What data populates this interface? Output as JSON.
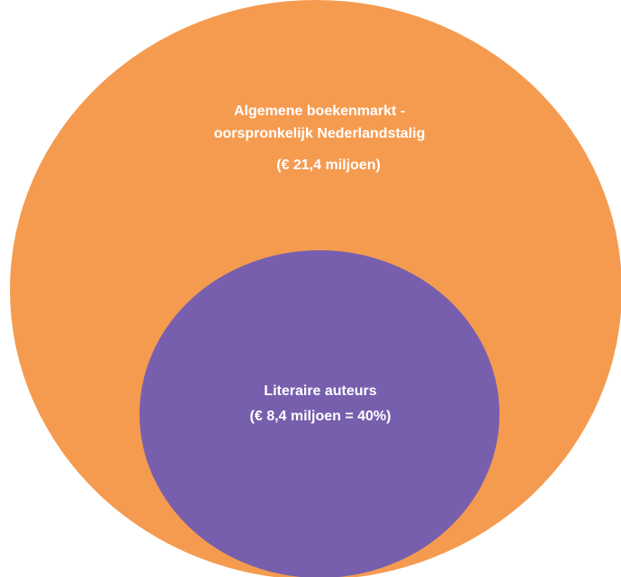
{
  "nodes": [
    {
      "label_lines": [
        "Algemene boekenmarkt -",
        "oorspronkelijk Nederlandstalig",
        "(€ 21,4 miljoen)"
      ]
    },
    {
      "label_lines": [
        "Literaire auteurs",
        "(€ 8,4 miljoen = 40%)"
      ]
    }
  ]
}
